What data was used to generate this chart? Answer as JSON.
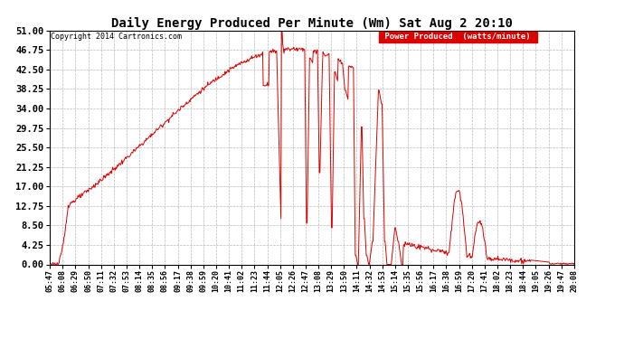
{
  "title": "Daily Energy Produced Per Minute (Wm) Sat Aug 2 20:10",
  "copyright": "Copyright 2014 Cartronics.com",
  "legend_label": "Power Produced  (watts/minute)",
  "legend_bg": "#dd0000",
  "legend_text_color": "#ffffff",
  "line_color": "#dd0000",
  "bg_color": "#ffffff",
  "grid_color": "#bbbbbb",
  "ylim": [
    0,
    51
  ],
  "yticks": [
    0.0,
    4.25,
    8.5,
    12.75,
    17.0,
    21.25,
    25.5,
    29.75,
    34.0,
    38.25,
    42.5,
    46.75,
    51.0
  ],
  "xtick_labels": [
    "05:47",
    "06:08",
    "06:29",
    "06:50",
    "07:11",
    "07:32",
    "07:53",
    "08:14",
    "08:35",
    "08:56",
    "09:17",
    "09:38",
    "09:59",
    "10:20",
    "10:41",
    "11:02",
    "11:23",
    "11:44",
    "12:05",
    "12:26",
    "12:47",
    "13:08",
    "13:29",
    "13:50",
    "14:11",
    "14:32",
    "14:53",
    "15:14",
    "15:35",
    "15:56",
    "16:17",
    "16:38",
    "16:59",
    "17:20",
    "17:41",
    "18:02",
    "18:23",
    "18:44",
    "19:05",
    "19:26",
    "19:47",
    "20:08"
  ],
  "figsize": [
    6.9,
    3.75
  ],
  "dpi": 100
}
